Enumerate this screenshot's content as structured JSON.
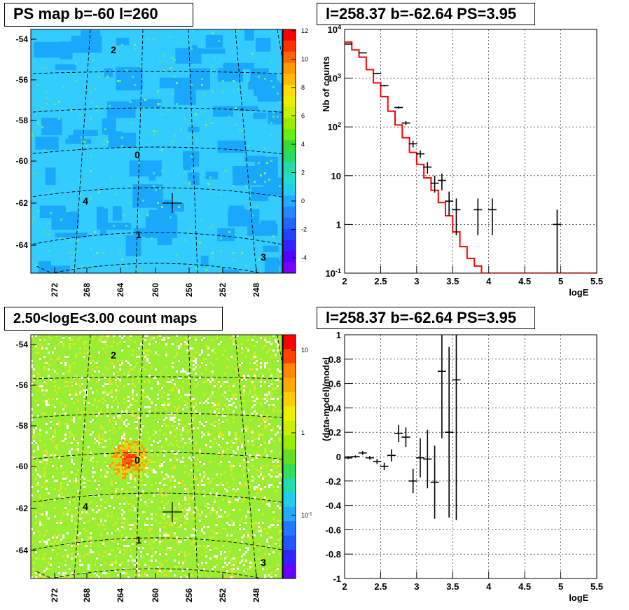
{
  "panels": {
    "tl_title": "PS map b=-60 l=260",
    "tr_title": "l=258.37 b=-62.64 PS=3.95",
    "bl_title": "2.50<logE<3.00 count maps",
    "br_title": "l=258.37 b=-62.64 PS=3.95"
  },
  "colors": {
    "map_base_top": "#33ccff",
    "map_patch_top": "#1aa8ff",
    "map_base_bottom": "#99ee33",
    "model_line": "#ff0000",
    "data_marker": "#000000"
  },
  "chart_data": [
    {
      "type": "heatmap",
      "name": "tl",
      "y_ticks": [
        "-54",
        "-56",
        "-58",
        "-60",
        "-62",
        "-64"
      ],
      "x_ticks": [
        "272",
        "268",
        "264",
        "260",
        "256",
        "252",
        "248"
      ],
      "colorbar_ticks": [
        "12",
        "10",
        "8",
        "6",
        "4",
        "2",
        "0",
        "-2",
        "-4"
      ],
      "colorbar_range": [
        -5,
        12
      ],
      "source_labels": [
        "2",
        "0",
        "4",
        "1",
        "3"
      ],
      "marker": "center cross"
    },
    {
      "type": "line",
      "name": "tr",
      "xlabel": "logE",
      "ylabel": "Nb of counts",
      "ylog": true,
      "xlim": [
        2,
        5.5
      ],
      "ylim": [
        0.1,
        10000
      ],
      "x_ticks": [
        "2",
        "2.5",
        "3",
        "3.5",
        "4",
        "4.5",
        "5",
        "5.5"
      ],
      "y_ticks": [
        "10^4",
        "10^3",
        "10^2",
        "10",
        "1",
        "10^-1"
      ],
      "model_step": {
        "edges": [
          2.0,
          2.1,
          2.2,
          2.3,
          2.4,
          2.5,
          2.6,
          2.7,
          2.8,
          2.9,
          3.0,
          3.1,
          3.2,
          3.3,
          3.4,
          3.5,
          3.6,
          3.7,
          3.8,
          3.9,
          4.0,
          5.5
        ],
        "values": [
          5500,
          3800,
          2700,
          1500,
          800,
          420,
          210,
          110,
          60,
          30,
          17,
          9,
          5,
          2.8,
          1.5,
          0.7,
          0.35,
          0.2,
          0.14,
          0.1,
          0.1
        ]
      },
      "data_points": [
        {
          "x": 2.05,
          "y": 5000,
          "lo": 4930,
          "hi": 5070
        },
        {
          "x": 2.25,
          "y": 3300,
          "lo": 3240,
          "hi": 3360
        },
        {
          "x": 2.45,
          "y": 1250,
          "lo": 1210,
          "hi": 1290
        },
        {
          "x": 2.55,
          "y": 700,
          "lo": 675,
          "hi": 725
        },
        {
          "x": 2.75,
          "y": 250,
          "lo": 235,
          "hi": 265
        },
        {
          "x": 2.85,
          "y": 120,
          "lo": 109,
          "hi": 131
        },
        {
          "x": 2.95,
          "y": 45,
          "lo": 38,
          "hi": 52
        },
        {
          "x": 3.05,
          "y": 28,
          "lo": 23,
          "hi": 33
        },
        {
          "x": 3.15,
          "y": 15,
          "lo": 11,
          "hi": 19
        },
        {
          "x": 3.25,
          "y": 7,
          "lo": 4.5,
          "hi": 10
        },
        {
          "x": 3.35,
          "y": 8,
          "lo": 5,
          "hi": 11
        },
        {
          "x": 3.45,
          "y": 3,
          "lo": 1.5,
          "hi": 4.7
        },
        {
          "x": 3.55,
          "y": 2,
          "lo": 0.6,
          "hi": 3.4
        },
        {
          "x": 3.85,
          "y": 2,
          "lo": 0.6,
          "hi": 3.4
        },
        {
          "x": 4.05,
          "y": 2,
          "lo": 0.6,
          "hi": 3.4
        },
        {
          "x": 4.95,
          "y": 1,
          "lo": 0.1,
          "hi": 2
        }
      ]
    },
    {
      "type": "heatmap",
      "name": "bl",
      "y_ticks": [
        "-54",
        "-56",
        "-58",
        "-60",
        "-62",
        "-64"
      ],
      "x_ticks": [
        "272",
        "268",
        "264",
        "260",
        "256",
        "252",
        "248"
      ],
      "colorbar_ticks": [
        "10",
        "1",
        "10^-1"
      ],
      "source_labels": [
        "2",
        "0",
        "4",
        "1",
        "3"
      ],
      "marker": "cross"
    },
    {
      "type": "scatter",
      "name": "br",
      "xlabel": "logE",
      "ylabel": "(data-model)/model",
      "xlim": [
        2,
        5.5
      ],
      "ylim": [
        -1,
        1
      ],
      "x_ticks": [
        "2",
        "2.5",
        "3",
        "3.5",
        "4",
        "4.5",
        "5",
        "5.5"
      ],
      "y_ticks": [
        "1",
        "0.8",
        "0.6",
        "0.4",
        "0.2",
        "0",
        "-0.2",
        "-0.4",
        "-0.6",
        "-0.8",
        "-1"
      ],
      "data_points": [
        {
          "x": 2.05,
          "y": -0.01,
          "err": 0.01
        },
        {
          "x": 2.15,
          "y": 0.0,
          "err": 0.01
        },
        {
          "x": 2.25,
          "y": 0.03,
          "err": 0.015
        },
        {
          "x": 2.35,
          "y": -0.01,
          "err": 0.015
        },
        {
          "x": 2.45,
          "y": -0.04,
          "err": 0.02
        },
        {
          "x": 2.55,
          "y": -0.08,
          "err": 0.03
        },
        {
          "x": 2.65,
          "y": 0.01,
          "err": 0.05
        },
        {
          "x": 2.75,
          "y": 0.19,
          "err": 0.07
        },
        {
          "x": 2.85,
          "y": 0.16,
          "err": 0.08
        },
        {
          "x": 2.95,
          "y": -0.2,
          "err": 0.1
        },
        {
          "x": 3.05,
          "y": -0.01,
          "err": 0.16
        },
        {
          "x": 3.15,
          "y": -0.02,
          "err": 0.24
        },
        {
          "x": 3.25,
          "y": -0.21,
          "err": 0.3
        },
        {
          "x": 3.35,
          "y": 0.7,
          "err": 0.55
        },
        {
          "x": 3.45,
          "y": 0.2,
          "err": 0.7
        },
        {
          "x": 3.55,
          "y": 0.63,
          "err": 1.15
        }
      ]
    }
  ]
}
